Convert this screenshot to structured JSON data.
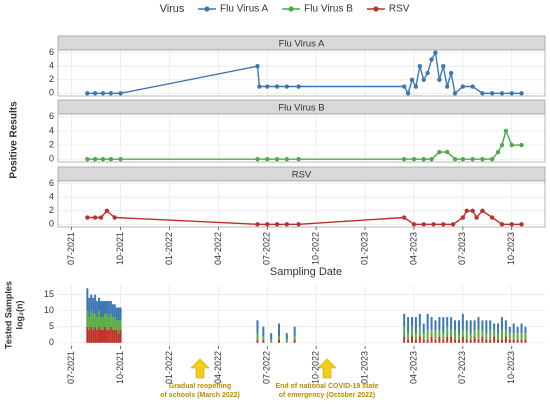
{
  "chart_data": [
    {
      "type": "line",
      "legend_title": "Virus",
      "ylabel": "Positive Results",
      "xlabel": "Sampling Date",
      "legend": "top",
      "grid": true,
      "xlim": [
        2021.43,
        2023.92
      ],
      "xticks": [
        {
          "value": 2021.5,
          "label": "07-2021"
        },
        {
          "value": 2021.75,
          "label": "10-2021"
        },
        {
          "value": 2022.0,
          "label": "01-2022"
        },
        {
          "value": 2022.25,
          "label": "04-2022"
        },
        {
          "value": 2022.5,
          "label": "07-2022"
        },
        {
          "value": 2022.75,
          "label": "10-2022"
        },
        {
          "value": 2023.0,
          "label": "01-2023"
        },
        {
          "value": 2023.25,
          "label": "04-2023"
        },
        {
          "value": 2023.5,
          "label": "07-2023"
        },
        {
          "value": 2023.75,
          "label": "10-2023"
        }
      ],
      "ylim": [
        -0.4,
        6.4
      ],
      "yticks": [
        0,
        2,
        4,
        6
      ],
      "series": [
        {
          "name": "Flu Virus A",
          "color": "#3d77b3",
          "x": [
            2021.58,
            2021.62,
            2021.66,
            2021.7,
            2021.75,
            2022.45,
            2022.46,
            2022.5,
            2022.55,
            2022.6,
            2022.66,
            2023.2,
            2023.22,
            2023.24,
            2023.26,
            2023.28,
            2023.3,
            2023.32,
            2023.34,
            2023.36,
            2023.38,
            2023.4,
            2023.42,
            2023.44,
            2023.46,
            2023.5,
            2023.55,
            2023.6,
            2023.65,
            2023.7,
            2023.75,
            2023.8
          ],
          "values": [
            0,
            0,
            0,
            0,
            0,
            4,
            1,
            1,
            1,
            1,
            1,
            1,
            0,
            2,
            1,
            4,
            2,
            3,
            5,
            6,
            2,
            4,
            1,
            3,
            0,
            1,
            1,
            0,
            0,
            0,
            0,
            0
          ]
        },
        {
          "name": "Flu Virus B",
          "color": "#4fa94a",
          "x": [
            2021.58,
            2021.62,
            2021.66,
            2021.7,
            2021.75,
            2022.45,
            2022.5,
            2022.55,
            2022.6,
            2022.66,
            2023.2,
            2023.25,
            2023.3,
            2023.34,
            2023.38,
            2023.42,
            2023.46,
            2023.5,
            2023.55,
            2023.6,
            2023.65,
            2023.68,
            2023.7,
            2023.72,
            2023.75,
            2023.8
          ],
          "values": [
            0,
            0,
            0,
            0,
            0,
            0,
            0,
            0,
            0,
            0,
            0,
            0,
            0,
            0,
            1,
            1,
            0,
            0,
            0,
            0,
            0,
            1,
            2,
            4,
            2,
            2
          ]
        },
        {
          "name": "RSV",
          "color": "#b8322b",
          "x": [
            2021.58,
            2021.62,
            2021.65,
            2021.68,
            2021.72,
            2022.45,
            2022.5,
            2022.55,
            2022.6,
            2022.66,
            2023.2,
            2023.25,
            2023.3,
            2023.35,
            2023.4,
            2023.45,
            2023.5,
            2023.52,
            2023.55,
            2023.57,
            2023.6,
            2023.65,
            2023.7,
            2023.75,
            2023.8
          ],
          "values": [
            1,
            1,
            1,
            2,
            1,
            0,
            0,
            0,
            0,
            0,
            1,
            0,
            0,
            0,
            0,
            0,
            1,
            2,
            2,
            1,
            2,
            1,
            0,
            0,
            0
          ]
        }
      ]
    },
    {
      "type": "bar",
      "ylabel": [
        "Tested Samples",
        "log₂(n)"
      ],
      "stacked": true,
      "grid": true,
      "xlim": [
        2021.43,
        2023.92
      ],
      "xticks": [
        {
          "value": 2021.5,
          "label": "07-2021"
        },
        {
          "value": 2021.75,
          "label": "10-2021"
        },
        {
          "value": 2022.0,
          "label": "01-2022"
        },
        {
          "value": 2022.25,
          "label": "04-2022"
        },
        {
          "value": 2022.5,
          "label": "07-2022"
        },
        {
          "value": 2022.75,
          "label": "10-2022"
        },
        {
          "value": 2023.0,
          "label": "01-2023"
        },
        {
          "value": 2023.25,
          "label": "04-2023"
        },
        {
          "value": 2023.5,
          "label": "07-2023"
        },
        {
          "value": 2023.75,
          "label": "10-2023"
        }
      ],
      "ylim": [
        -1,
        18
      ],
      "yticks": [
        0,
        5,
        10,
        15
      ],
      "x": [
        2021.58,
        2021.59,
        2021.6,
        2021.61,
        2021.62,
        2021.63,
        2021.64,
        2021.65,
        2021.66,
        2021.67,
        2021.68,
        2021.69,
        2021.7,
        2021.71,
        2021.72,
        2021.73,
        2021.74,
        2021.75,
        2022.45,
        2022.48,
        2022.52,
        2022.56,
        2022.6,
        2022.64,
        2023.2,
        2023.22,
        2023.24,
        2023.26,
        2023.28,
        2023.3,
        2023.32,
        2023.34,
        2023.36,
        2023.38,
        2023.4,
        2023.42,
        2023.44,
        2023.46,
        2023.48,
        2023.5,
        2023.52,
        2023.54,
        2023.56,
        2023.58,
        2023.6,
        2023.62,
        2023.64,
        2023.66,
        2023.68,
        2023.7,
        2023.72,
        2023.74,
        2023.76,
        2023.78,
        2023.8,
        2023.82
      ],
      "series": [
        {
          "name": "RSV",
          "color": "#c0332b",
          "values": [
            5,
            4,
            5,
            4,
            5,
            4,
            5,
            4,
            4,
            5,
            4,
            4,
            5,
            4,
            4,
            4,
            3,
            4,
            1,
            1,
            0,
            1,
            0,
            1,
            2,
            1,
            2,
            1,
            2,
            1,
            1,
            2,
            1,
            2,
            1,
            2,
            2,
            1,
            1,
            2,
            1,
            1,
            2,
            1,
            2,
            1,
            1,
            2,
            1,
            1,
            2,
            1,
            1,
            1,
            1,
            1
          ]
        },
        {
          "name": "Flu Virus B",
          "color": "#5aac44",
          "values": [
            5,
            4,
            5,
            5,
            4,
            4,
            5,
            4,
            4,
            4,
            5,
            4,
            4,
            4,
            4,
            3,
            4,
            3,
            2,
            1,
            1,
            1,
            1,
            1,
            3,
            2,
            3,
            2,
            3,
            2,
            3,
            2,
            3,
            2,
            2,
            3,
            2,
            3,
            2,
            2,
            3,
            2,
            2,
            3,
            2,
            2,
            3,
            2,
            2,
            3,
            2,
            2,
            2,
            2,
            2,
            2
          ]
        },
        {
          "name": "Flu Virus A",
          "color": "#3d77b3",
          "values": [
            7,
            6,
            5,
            5,
            6,
            5,
            4,
            5,
            5,
            4,
            4,
            5,
            4,
            4,
            4,
            4,
            4,
            4,
            4,
            3,
            2,
            4,
            2,
            3,
            4,
            5,
            3,
            5,
            4,
            3,
            5,
            4,
            3,
            4,
            5,
            3,
            4,
            3,
            4,
            5,
            3,
            4,
            3,
            4,
            3,
            4,
            3,
            2,
            3,
            4,
            3,
            2,
            3,
            2,
            3,
            2
          ]
        }
      ],
      "annotations": [
        {
          "text": [
            "Gradual reopening",
            "of schools  (March 2022)"
          ]
        },
        {
          "text": [
            "End of national COVID-19 state",
            "of emergency (October 2022)"
          ]
        }
      ]
    }
  ]
}
